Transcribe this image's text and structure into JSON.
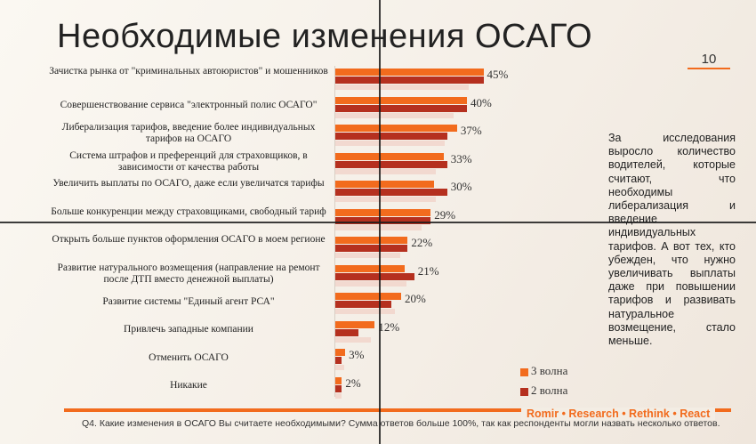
{
  "slide": {
    "title": "Необходимые изменения ОСАГО",
    "page_number": "10",
    "comment": "За исследования выросло количество водителей, которые считают, что необходимы либерализация и введение индивидуальных тарифов. А вот тех, кто убежден, что нужно увеличивать выплаты даже при повышении тарифов и развивать натуральное возмещение, стало меньше.",
    "brand": "Romir • Research • Rethink • React",
    "footnote": "Q4. Какие изменения в ОСАГО Вы считаете необходимыми? Сумма ответов больше 100%, так как респонденты могли назвать несколько ответов."
  },
  "colors": {
    "wave3": "#f26b1d",
    "wave2": "#b5301f",
    "ghost": "#f0c9c0"
  },
  "chart_data": {
    "type": "bar",
    "orientation": "horizontal",
    "categories": [
      "Зачистка рынка от \"криминальных автоюристов\" и мошенников",
      "Совершенствование сервиса \"электронный полис ОСАГО\"",
      "Либерализация тарифов, введение более индивидуальных тарифов на ОСАГО",
      "Система штрафов и преференций для страховщиков, в зависимости от качества работы",
      "Увеличить выплаты по ОСАГО, даже если увеличатся тарифы",
      "Больше конкуренции между страховщиками, свободный тариф",
      "Открыть больше пунктов оформления ОСАГО в моем регионе",
      "Развитие натурального возмещения (направление на ремонт после ДТП вместо денежной выплаты)",
      "Развитие системы \"Единый агент РСА\"",
      "Привлечь западные компании",
      "Отменить ОСАГО",
      "Никакие"
    ],
    "series": [
      {
        "name": "3 волна",
        "values": [
          45,
          40,
          37,
          33,
          30,
          29,
          22,
          21,
          20,
          12,
          3,
          2
        ]
      },
      {
        "name": "2 волна",
        "values": [
          45,
          40,
          34,
          34,
          34,
          29,
          22,
          24,
          17,
          7,
          2,
          2
        ]
      }
    ],
    "value_labels": [
      "45%",
      "40%",
      "37%",
      "33%",
      "30%",
      "29%",
      "22%",
      "21%",
      "20%",
      "12%",
      "3%",
      "2%"
    ],
    "xlim": [
      0,
      50
    ],
    "legend_placement": "bottom-right",
    "grid": false
  }
}
